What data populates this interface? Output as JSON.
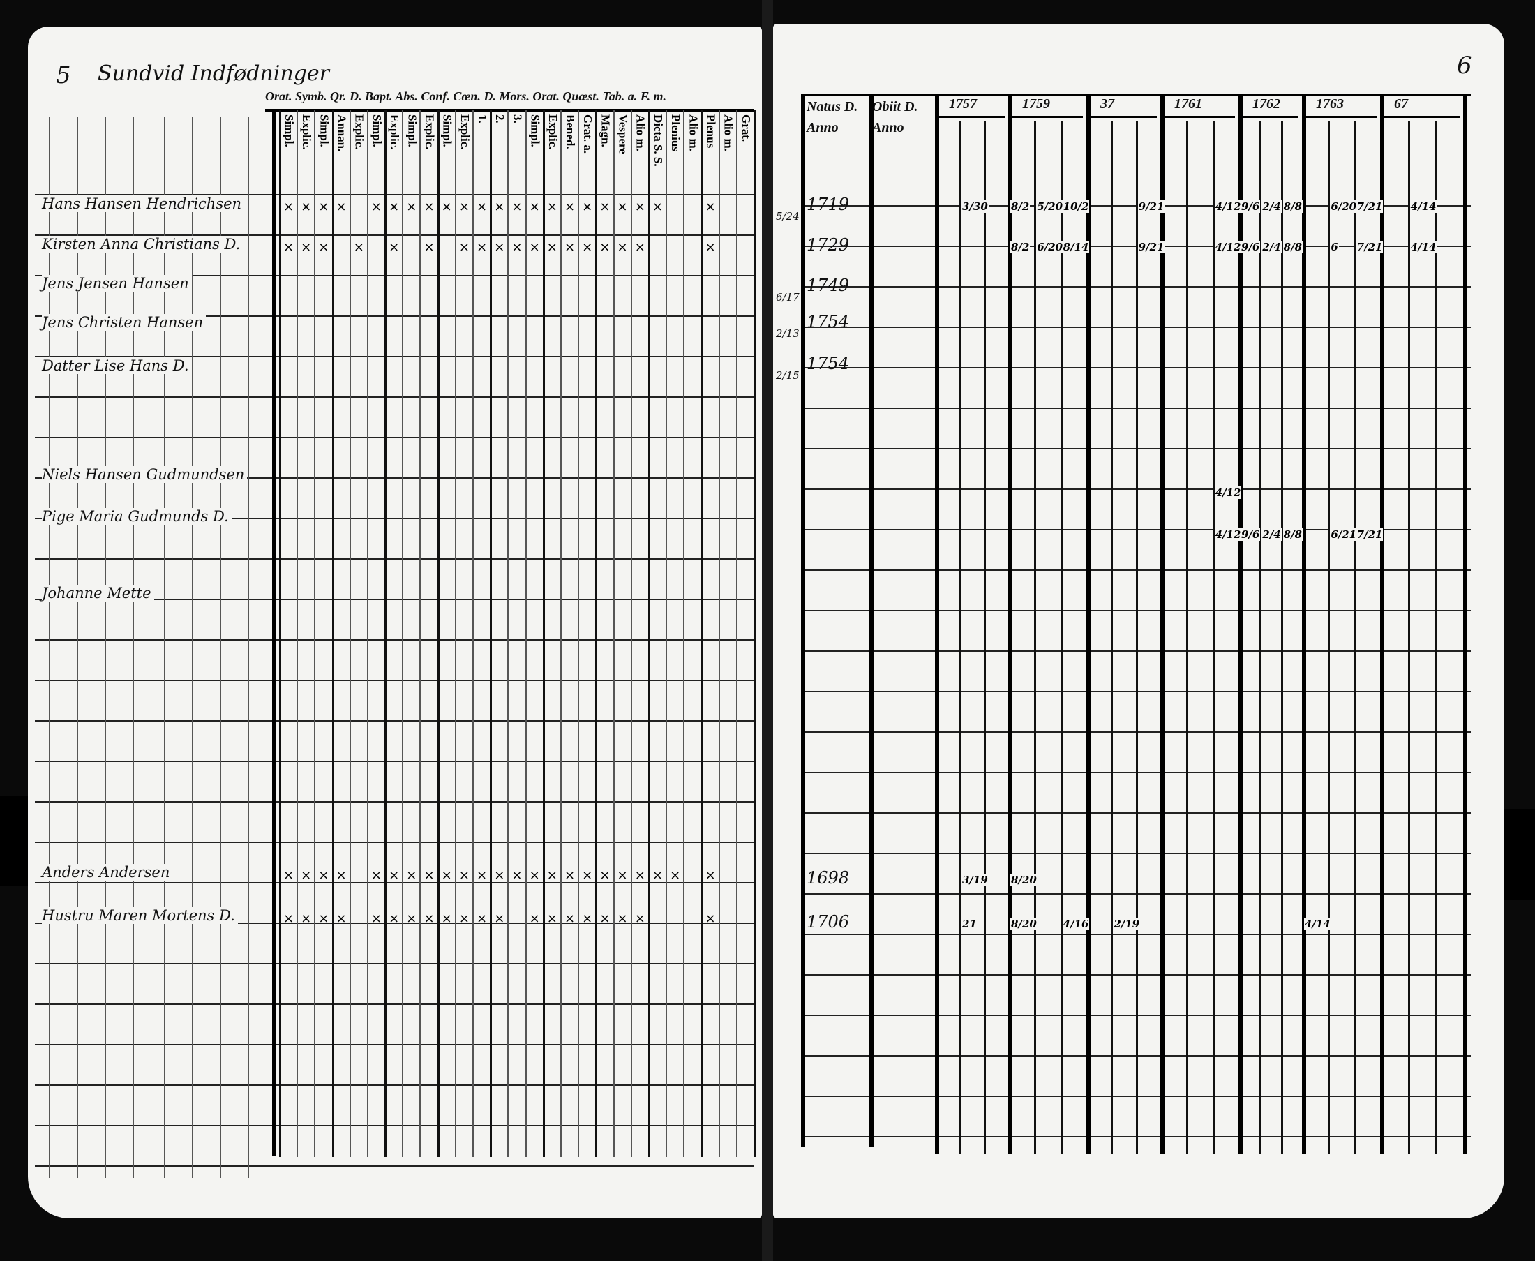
{
  "left_page": {
    "page_number": "5",
    "heading": "Sundvid Indfødninger",
    "top_header": "Orat. Symb. Qr. D. Bapt. Abs. Conf. Cœn. D. Mors. Orat. Quæst. Tab. a. F. m.",
    "column_headers": [
      "Simpl.",
      "Explic.",
      "Simpl.",
      "Annan.",
      "Explic.",
      "Simpl.",
      "Explic.",
      "Simpl.",
      "Explic.",
      "Simpl.",
      "Explic.",
      "1.",
      "2.",
      "3.",
      "Simpl.",
      "Explic.",
      "Bened.",
      "Grat. a.",
      "Magn.",
      "Vespere",
      "Alio m.",
      "Dicta S. S.",
      "Plenius",
      "Alio m.",
      "Plenus",
      "Alio m.",
      "Grat."
    ],
    "entries": [
      {
        "name": "Hans Hansen Hendrichsen",
        "marks": [
          0,
          1,
          2,
          3,
          5,
          6,
          7,
          8,
          9,
          10,
          11,
          12,
          13,
          14,
          15,
          16,
          17,
          18,
          19,
          20,
          21,
          24
        ]
      },
      {
        "name": "Kirsten Anna Christians D.",
        "marks": [
          0,
          1,
          2,
          4,
          6,
          8,
          10,
          11,
          12,
          13,
          14,
          15,
          16,
          17,
          18,
          19,
          20,
          24
        ]
      },
      {
        "name": "Jens Jensen Hansen",
        "marks": []
      },
      {
        "name": "Jens Christen Hansen",
        "marks": []
      },
      {
        "name": "Datter Lise Hans D.",
        "marks": []
      },
      {
        "name": "Niels Hansen Gudmundsen",
        "marks": []
      },
      {
        "name": "Pige Maria Gudmunds D.",
        "marks": []
      },
      {
        "name": "Johanne Mette",
        "marks": []
      },
      {
        "name": "Anders Andersen",
        "marks": [
          0,
          1,
          2,
          3,
          5,
          6,
          7,
          8,
          9,
          10,
          11,
          12,
          13,
          14,
          15,
          16,
          17,
          18,
          19,
          20,
          21,
          22,
          24
        ]
      },
      {
        "name": "Hustru Maren Mortens D.",
        "marks": [
          0,
          1,
          2,
          3,
          5,
          6,
          7,
          8,
          9,
          10,
          11,
          12,
          14,
          15,
          16,
          17,
          18,
          19,
          20,
          24
        ]
      }
    ]
  },
  "right_page": {
    "page_number": "6",
    "natus_header": "Natus D. Anno",
    "obiit_header": "Obiit D. Anno",
    "year_headers": [
      "1757",
      "1759",
      "37",
      "1761",
      "1762",
      "1763",
      "67"
    ],
    "rows": [
      {
        "day": "5/24",
        "year": "1719",
        "marks": [
          {
            "col": 1,
            "v": "3/30"
          },
          {
            "col": 3,
            "v": "8/2"
          },
          {
            "col": 4,
            "v": "5/20"
          },
          {
            "col": 5,
            "v": "10/2"
          },
          {
            "col": 8,
            "v": "9/21"
          },
          {
            "col": 11,
            "v": "4/12"
          },
          {
            "col": 12,
            "v": "9/6"
          },
          {
            "col": 13,
            "v": "2/4"
          },
          {
            "col": 14,
            "v": "8/8"
          },
          {
            "col": 16,
            "v": "6/20"
          },
          {
            "col": 17,
            "v": "7/21"
          },
          {
            "col": 19,
            "v": "4/14"
          }
        ]
      },
      {
        "day": "",
        "year": "1729",
        "marks": [
          {
            "col": 3,
            "v": "8/2"
          },
          {
            "col": 4,
            "v": "6/20"
          },
          {
            "col": 5,
            "v": "8/14"
          },
          {
            "col": 8,
            "v": "9/21"
          },
          {
            "col": 11,
            "v": "4/12"
          },
          {
            "col": 12,
            "v": "9/6"
          },
          {
            "col": 13,
            "v": "2/4"
          },
          {
            "col": 14,
            "v": "8/8"
          },
          {
            "col": 16,
            "v": "6"
          },
          {
            "col": 17,
            "v": "7/21"
          },
          {
            "col": 19,
            "v": "4/14"
          }
        ]
      },
      {
        "day": "6/17",
        "year": "1749",
        "marks": []
      },
      {
        "day": "2/13",
        "year": "1754",
        "marks": []
      },
      {
        "day": "2/15",
        "year": "1754",
        "marks": []
      },
      {
        "day": "",
        "year": "",
        "marks": [
          {
            "col": 11,
            "v": "4/12"
          }
        ]
      },
      {
        "day": "",
        "year": "",
        "marks": [
          {
            "col": 11,
            "v": "4/12"
          },
          {
            "col": 12,
            "v": "9/6"
          },
          {
            "col": 13,
            "v": "2/4"
          },
          {
            "col": 14,
            "v": "8/8"
          },
          {
            "col": 16,
            "v": "6/21"
          },
          {
            "col": 17,
            "v": "7/21"
          }
        ]
      },
      {
        "day": "",
        "year": "1698",
        "marks": [
          {
            "col": 1,
            "v": "3/19"
          },
          {
            "col": 3,
            "v": "8/20"
          }
        ]
      },
      {
        "day": "",
        "year": "1706",
        "marks": [
          {
            "col": 1,
            "v": "21"
          },
          {
            "col": 3,
            "v": "8/20"
          },
          {
            "col": 5,
            "v": "4/16"
          },
          {
            "col": 7,
            "v": "2/19"
          },
          {
            "col": 15,
            "v": "4/14"
          }
        ]
      }
    ]
  },
  "colors": {
    "paper": "#f4f4f2",
    "ink": "#111111",
    "background": "#0a0a0a"
  }
}
